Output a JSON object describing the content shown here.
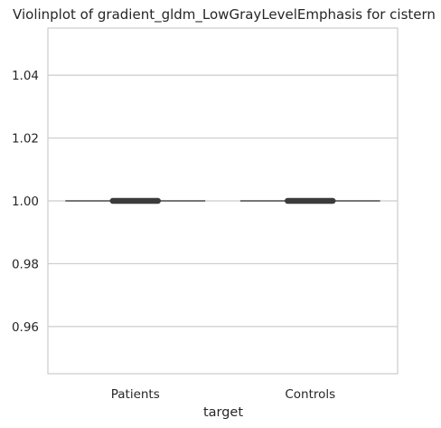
{
  "chart_data": {
    "type": "violin",
    "title": "Violinplot of gradient_gldm_LowGrayLevelEmphasis for cistern",
    "xlabel": "target",
    "ylabel": "",
    "categories": [
      "Patients",
      "Controls"
    ],
    "values": [
      1.0,
      1.0
    ],
    "ylim": [
      0.945,
      1.055
    ],
    "yticks": [
      0.96,
      0.98,
      1.0,
      1.02,
      1.04
    ],
    "ytick_labels": [
      "0.96",
      "0.98",
      "1.00",
      "1.02",
      "1.04"
    ],
    "grid": "horizontal",
    "colors": {
      "grid": "#cccccc",
      "spine": "#cccccc",
      "line": "#4d4d4d",
      "box": "#3b3b3b",
      "text": "#262626"
    }
  }
}
